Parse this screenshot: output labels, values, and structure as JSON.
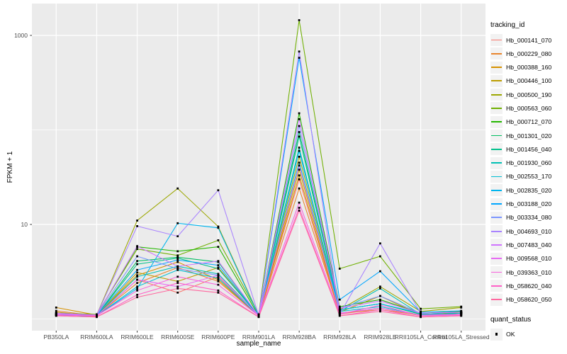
{
  "figure": {
    "y_axis": {
      "title": "FPKM + 1"
    },
    "x_axis": {
      "title": "sample_name"
    },
    "legend": {
      "tracking_title": "tracking_id",
      "quant_title": "quant_status",
      "quant_items": [
        {
          "label": "OK",
          "marker": "filled-black-square-icon"
        }
      ]
    }
  },
  "chart_data": {
    "type": "line",
    "title": "",
    "xlabel": "sample_name",
    "ylabel": "FPKM + 1",
    "y_scale": "log10",
    "ylim": [
      1,
      1600
    ],
    "grid": true,
    "legend_position": "right",
    "panel_background": "#ebebeb",
    "gridline_color": "#ffffff",
    "point_marker": "filled-black-square",
    "y_ticks": [
      {
        "label": "1000",
        "value": 1000
      },
      {
        "label": "10",
        "value": 10
      }
    ],
    "y_minor_grid_values": [
      100,
      1
    ],
    "categories": [
      "PB350LA",
      "RRIM600LA",
      "RRIM600LE",
      "RRIM600SE",
      "RRIM600PE",
      "RRIM901LA",
      "RRIM928BA",
      "RRIM928LA",
      "RRIM928LE",
      "RRII105LA_Control",
      "RRII105LA_Stressed"
    ],
    "series": [
      {
        "name": "Hb_000141_070",
        "color": "#F8766D",
        "values": [
          1.12,
          1.06,
          2.6,
          1.9,
          2.8,
          1.08,
          30,
          1.12,
          1.3,
          1.08,
          1.12
        ]
      },
      {
        "name": "Hb_000229_080",
        "color": "#E9842C",
        "values": [
          1.22,
          1.08,
          2.4,
          3.5,
          2.5,
          1.08,
          24,
          1.15,
          1.25,
          1.1,
          1.15
        ]
      },
      {
        "name": "Hb_000388_160",
        "color": "#D69100",
        "values": [
          1.32,
          1.1,
          2.9,
          4.0,
          2.6,
          1.08,
          33,
          1.15,
          1.3,
          1.1,
          1.18
        ]
      },
      {
        "name": "Hb_000446_100",
        "color": "#BC9D00",
        "values": [
          1.18,
          1.08,
          3.1,
          2.5,
          3.5,
          1.08,
          38,
          1.18,
          1.75,
          1.1,
          1.15
        ]
      },
      {
        "name": "Hb_000500_190",
        "color": "#9CA700",
        "values": [
          1.15,
          1.1,
          11.0,
          24.0,
          9.5,
          1.1,
          52,
          1.25,
          2.2,
          1.2,
          1.32
        ]
      },
      {
        "name": "Hb_000563_060",
        "color": "#6FB000",
        "values": [
          1.15,
          1.12,
          5.5,
          4.7,
          6.8,
          1.12,
          1450,
          3.4,
          4.6,
          1.28,
          1.35
        ]
      },
      {
        "name": "Hb_000712_070",
        "color": "#24B700",
        "values": [
          1.12,
          1.1,
          5.8,
          5.2,
          5.8,
          1.08,
          150,
          1.35,
          1.6,
          1.15,
          1.2
        ]
      },
      {
        "name": "Hb_001301_020",
        "color": "#00BD61",
        "values": [
          1.1,
          1.08,
          4.1,
          4.5,
          4.0,
          1.08,
          95,
          1.25,
          1.45,
          1.12,
          1.15
        ]
      },
      {
        "name": "Hb_001456_040",
        "color": "#00C08B",
        "values": [
          1.1,
          1.08,
          3.8,
          4.4,
          3.4,
          1.08,
          85,
          1.25,
          1.45,
          1.12,
          1.15
        ]
      },
      {
        "name": "Hb_001930_060",
        "color": "#00C0B4",
        "values": [
          1.1,
          1.08,
          2.8,
          3.6,
          3.0,
          1.08,
          65,
          1.2,
          2.1,
          1.12,
          1.15
        ]
      },
      {
        "name": "Hb_002553_170",
        "color": "#00BDD2",
        "values": [
          1.1,
          1.08,
          2.2,
          3.3,
          2.7,
          1.08,
          45,
          1.2,
          1.35,
          1.1,
          1.12
        ]
      },
      {
        "name": "Hb_002835_020",
        "color": "#00B5EE",
        "values": [
          1.1,
          1.08,
          2.1,
          10.3,
          9.2,
          1.08,
          60,
          1.25,
          1.45,
          1.15,
          1.18
        ]
      },
      {
        "name": "Hb_003188_020",
        "color": "#00A6FF",
        "values": [
          1.1,
          1.1,
          3.3,
          4.2,
          3.7,
          1.08,
          580,
          1.6,
          3.2,
          1.18,
          1.22
        ]
      },
      {
        "name": "Hb_003334_080",
        "color": "#7C96FF",
        "values": [
          1.12,
          1.1,
          4.6,
          3.4,
          2.9,
          1.08,
          110,
          1.3,
          1.75,
          1.15,
          1.18
        ]
      },
      {
        "name": "Hb_004693_010",
        "color": "#A983FF",
        "values": [
          1.15,
          1.1,
          9.6,
          7.5,
          23.0,
          1.1,
          675,
          1.12,
          6.3,
          1.15,
          1.18
        ]
      },
      {
        "name": "Hb_007483_040",
        "color": "#CF74FF",
        "values": [
          1.15,
          1.1,
          5.9,
          3.6,
          4.1,
          1.08,
          130,
          1.3,
          1.55,
          1.15,
          1.18
        ]
      },
      {
        "name": "Hb_009568_010",
        "color": "#E76BF3",
        "values": [
          1.12,
          1.08,
          2.6,
          2.2,
          2.9,
          1.08,
          42,
          1.15,
          1.3,
          1.1,
          1.12
        ]
      },
      {
        "name": "Hb_039363_010",
        "color": "#F862DD",
        "values": [
          1.1,
          1.08,
          2.0,
          2.8,
          2.3,
          1.08,
          17,
          1.12,
          1.4,
          1.08,
          1.1
        ]
      },
      {
        "name": "Hb_058620_040",
        "color": "#FF61C7",
        "values": [
          1.08,
          1.05,
          1.8,
          2.4,
          2.0,
          1.05,
          15,
          1.08,
          1.25,
          1.05,
          1.08
        ]
      },
      {
        "name": "Hb_058620_050",
        "color": "#FF689F",
        "values": [
          1.08,
          1.05,
          1.7,
          2.1,
          1.9,
          1.05,
          14,
          1.08,
          1.2,
          1.05,
          1.08
        ]
      }
    ],
    "quant_status": "OK"
  }
}
